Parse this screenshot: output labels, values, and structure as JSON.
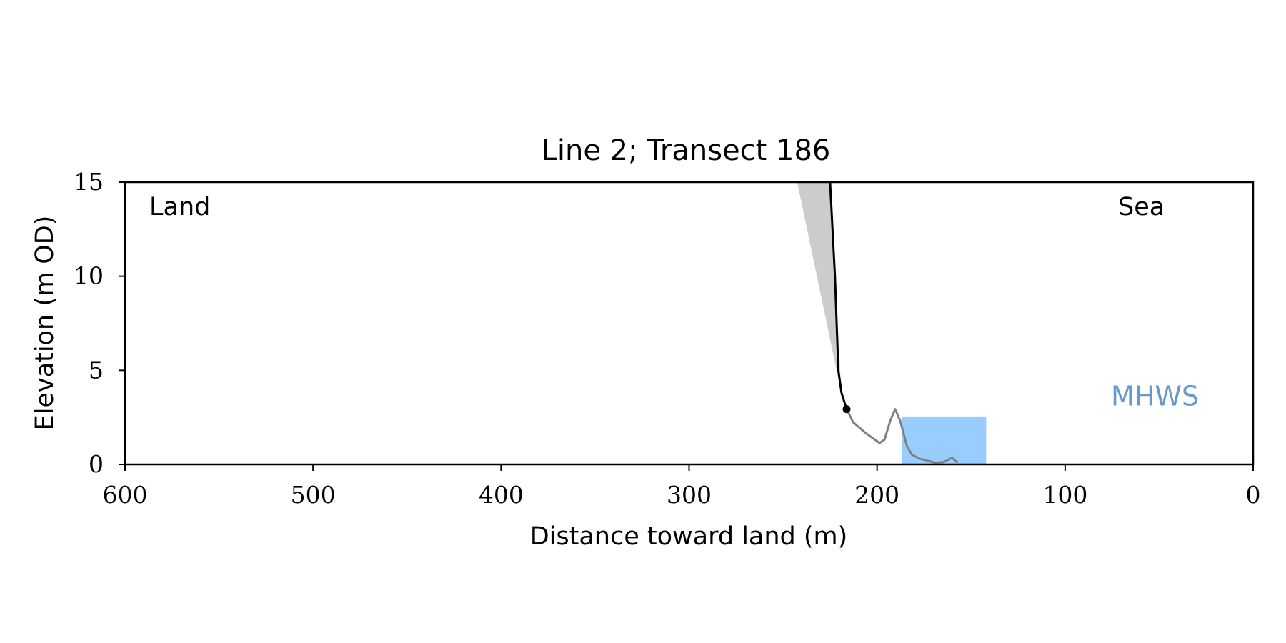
{
  "chart_data": {
    "type": "line",
    "title": "Line 2; Transect 186",
    "x_label": "Distance toward land (m)",
    "y_label": "Elevation (m OD)",
    "xlim": [
      600,
      0
    ],
    "ylim": [
      0,
      15
    ],
    "xticks": [
      600,
      500,
      400,
      300,
      200,
      100,
      0
    ],
    "yticks": [
      0,
      5,
      10,
      15
    ],
    "series": [
      {
        "kind": "area",
        "color": "#cccccc",
        "x": [
          242.5,
          225,
          219
        ],
        "values": [
          15,
          15,
          3.8
        ]
      },
      {
        "kind": "band",
        "color": "#99ccff",
        "x": [
          187,
          142
        ],
        "values": [
          2.55,
          2.55
        ]
      },
      {
        "kind": "line",
        "color": "#000000",
        "x": [
          225,
          222.4,
          220.6,
          218.9,
          216.2
        ],
        "values": [
          15,
          10,
          5,
          3.8,
          2.94
        ]
      },
      {
        "kind": "line",
        "color": "#808080",
        "x": [
          216.2,
          212.7,
          206.1,
          198.7,
          196,
          193,
          190.4,
          187.7,
          184.2,
          181.6,
          177.6,
          168.9,
          164.5,
          160.1,
          157.1
        ],
        "values": [
          2.94,
          2.24,
          1.67,
          1.14,
          1.32,
          2.32,
          2.94,
          2.32,
          1.0,
          0.53,
          0.31,
          0.09,
          0.13,
          0.35,
          0.09
        ]
      },
      {
        "kind": "point",
        "color": "#000000",
        "x": [
          216.2
        ],
        "values": [
          2.94
        ]
      }
    ],
    "annotations": [
      {
        "text": "Land",
        "color": "#000000"
      },
      {
        "text": "Sea",
        "color": "#000000"
      },
      {
        "text": "MHWS",
        "color": "#6699cc"
      }
    ]
  }
}
